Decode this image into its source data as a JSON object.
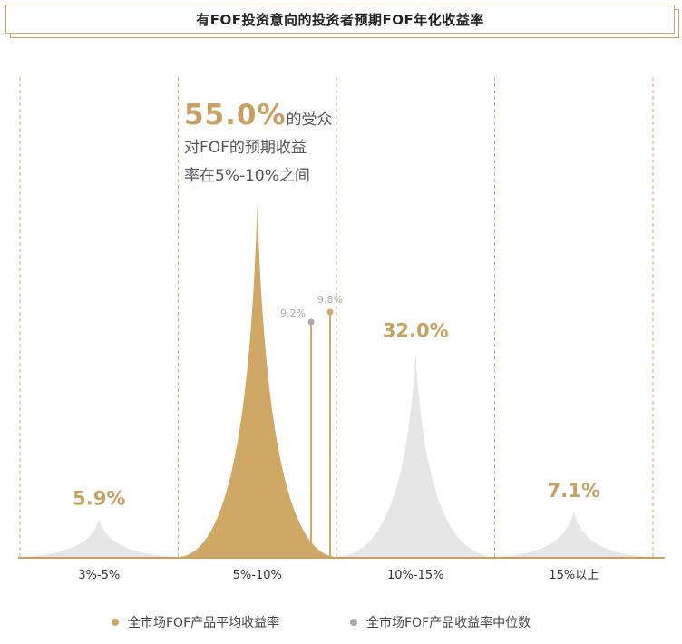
{
  "title": "有FOF投资意向的投资者预期FOF年化收益率",
  "annotation": {
    "highlight": "55.0%",
    "line1_suffix": "的受众",
    "line2": "对FOF的预期收益",
    "line3": "率在5%-10%之间"
  },
  "colors": {
    "accent": "#cfa866",
    "grey_fill": "#e6e6e6",
    "label_gold": "#c9a063",
    "median_grey": "#a9a9b0",
    "divider": "#d9a77a"
  },
  "legend": {
    "mean_label": "全市场FOF产品平均收益率",
    "median_label": "全市场FOF产品收益率中位数"
  },
  "chart_data": {
    "type": "area",
    "title": "有FOF投资意向的投资者预期FOF年化收益率",
    "categories": [
      "3%-5%",
      "5%-10%",
      "10%-15%",
      "15%以上"
    ],
    "values": [
      5.9,
      55.0,
      32.0,
      7.1
    ],
    "value_labels": [
      "5.9%",
      "",
      "32.0%",
      "7.1%"
    ],
    "highlight_category": "5%-10%",
    "markers": [
      {
        "name": "全市场FOF产品收益率中位数",
        "value": 9.2,
        "label": "9.2%"
      },
      {
        "name": "全市场FOF产品平均收益率",
        "value": 9.8,
        "label": "9.8%"
      }
    ],
    "ylim": [
      0,
      58
    ],
    "grid": false,
    "legend_position": "bottom"
  }
}
